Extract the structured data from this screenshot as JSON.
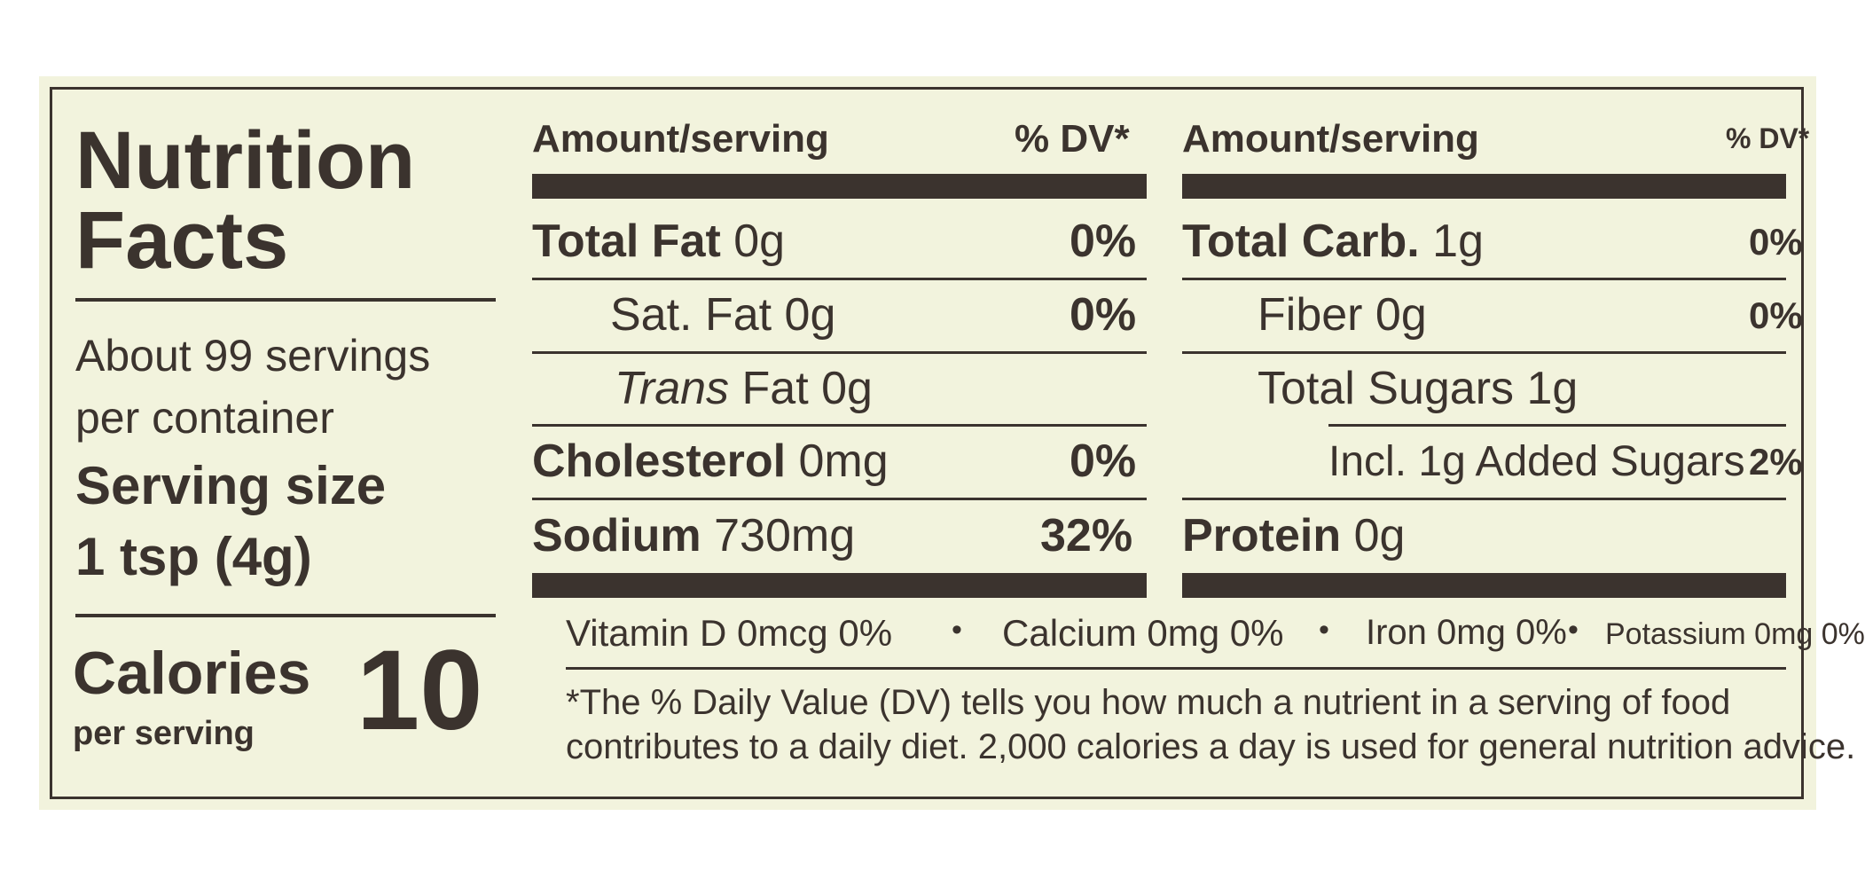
{
  "left": {
    "title_line1": "Nutrition",
    "title_line2": "Facts",
    "servings_line1": "About 99 servings",
    "servings_line2": "per container",
    "serving_size_label": "Serving size",
    "serving_size_value": "1 tsp (4g)",
    "calories_label": "Calories",
    "calories_sub": "per serving",
    "calories_value": "10"
  },
  "middle": {
    "header_amount": "Amount/serving",
    "header_dv": "% DV*",
    "rows": [
      {
        "name": "Total Fat",
        "amount": " 0g",
        "dv": "0%"
      },
      {
        "name": "Sat. Fat 0g",
        "dv": "0%"
      },
      {
        "name_italic": "Trans",
        "name_rest": " Fat 0g"
      },
      {
        "name": "Cholesterol",
        "amount": " 0mg",
        "dv": "0%"
      },
      {
        "name": "Sodium",
        "amount": " 730mg",
        "dv": "32%"
      }
    ]
  },
  "right": {
    "header_amount": "Amount/serving",
    "header_dv": "% DV*",
    "rows": [
      {
        "name": "Total Carb.",
        "amount": " 1g",
        "dv": "0%"
      },
      {
        "name": "Fiber 0g",
        "dv": "0%"
      },
      {
        "name": "Total Sugars 1g"
      },
      {
        "name": "Incl. 1g Added Sugars",
        "dv": "2%"
      },
      {
        "name": "Protein",
        "amount": " 0g"
      }
    ]
  },
  "vitamins": {
    "vitamin_d": "Vitamin D 0mcg 0%",
    "calcium": "Calcium 0mg 0%",
    "iron": "Iron 0mg 0%",
    "potassium": "Potassium 0mg 0%",
    "separator": "•"
  },
  "footnote": {
    "line1": "*The % Daily Value (DV) tells you how much a nutrient in a serving of food",
    "line2": "contributes to a daily diet. 2,000 calories a day is used for general nutrition advice."
  },
  "colors": {
    "background": "#f2f3dd",
    "ink": "#3b332e"
  }
}
